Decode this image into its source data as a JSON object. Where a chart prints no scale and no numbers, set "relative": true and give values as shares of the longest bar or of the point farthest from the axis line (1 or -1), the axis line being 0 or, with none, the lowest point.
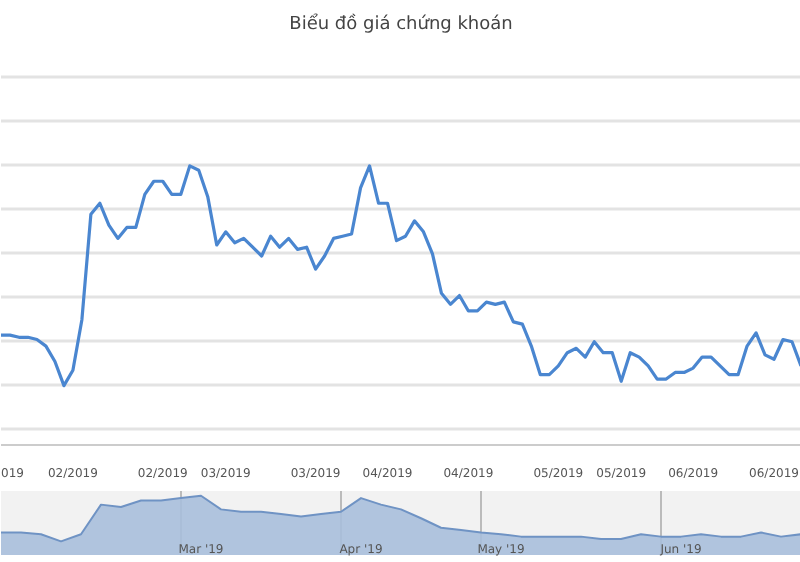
{
  "chart_data": [
    {
      "type": "line",
      "title": "Biểu đồ giá chứng khoán",
      "relative": true,
      "grid": "y",
      "marker": "none",
      "line_style": "solid",
      "categories": [
        null,
        "019",
        null,
        null,
        null,
        null,
        null,
        null,
        "02/2019",
        null,
        null,
        null,
        null,
        null,
        null,
        null,
        null,
        null,
        "02/2019",
        null,
        null,
        null,
        null,
        null,
        null,
        "03/2019",
        null,
        null,
        null,
        null,
        null,
        null,
        null,
        null,
        null,
        "03/2019",
        null,
        null,
        null,
        null,
        null,
        null,
        null,
        "04/2019",
        null,
        null,
        null,
        null,
        null,
        null,
        null,
        null,
        "04/2019",
        null,
        null,
        null,
        null,
        null,
        null,
        null,
        null,
        null,
        "05/2019",
        null,
        null,
        null,
        null,
        null,
        null,
        "05/2019",
        null,
        null,
        null,
        null,
        null,
        null,
        null,
        "06/2019",
        null,
        null,
        null,
        null,
        null,
        null,
        null,
        null,
        "06/2019",
        null,
        null,
        null
      ],
      "series": [
        {
          "color": "#4a86d0",
          "values": [
            0.23,
            0.23,
            0.22,
            0.22,
            0.21,
            0.18,
            0.11,
            0,
            0.07,
            0.3,
            0.78,
            0.83,
            0.73,
            0.67,
            0.72,
            0.72,
            0.87,
            0.93,
            0.93,
            0.87,
            0.87,
            1,
            0.98,
            0.86,
            0.64,
            0.7,
            0.65,
            0.67,
            0.63,
            0.59,
            0.68,
            0.63,
            0.67,
            0.62,
            0.63,
            0.53,
            0.59,
            0.67,
            0.68,
            0.69,
            0.9,
            1,
            0.83,
            0.83,
            0.66,
            0.68,
            0.75,
            0.7,
            0.6,
            0.42,
            0.37,
            0.41,
            0.34,
            0.34,
            0.38,
            0.37,
            0.38,
            0.29,
            0.28,
            0.18,
            0.05,
            0.05,
            0.09,
            0.15,
            0.17,
            0.13,
            0.2,
            0.15,
            0.15,
            0.02,
            0.15,
            0.13,
            0.09,
            0.03,
            0.03,
            0.06,
            0.06,
            0.08,
            0.13,
            0.13,
            0.09,
            0.05,
            0.05,
            0.18,
            0.24,
            0.14,
            0.12,
            0.21,
            0.2,
            0.09
          ]
        }
      ]
    },
    {
      "type": "area",
      "relative": true,
      "marker": "none",
      "grid": "x",
      "categories": [
        null,
        null,
        null,
        null,
        null,
        null,
        null,
        null,
        null,
        null,
        "Mar '19",
        null,
        null,
        null,
        null,
        null,
        null,
        null,
        "Apr '19",
        null,
        null,
        null,
        null,
        null,
        null,
        "May '19",
        null,
        null,
        null,
        null,
        null,
        null,
        null,
        null,
        "Jun '19",
        null,
        null,
        null,
        null,
        null,
        null
      ],
      "series": [
        {
          "color": "#a9bfdc",
          "values": [
            0.38,
            0.38,
            0.35,
            0.23,
            0.35,
            0.85,
            0.81,
            0.92,
            0.92,
            0.96,
            1,
            0.77,
            0.73,
            0.73,
            0.69,
            0.65,
            0.69,
            0.73,
            0.96,
            0.85,
            0.77,
            0.62,
            0.46,
            0.42,
            0.38,
            0.35,
            0.31,
            0.31,
            0.31,
            0.31,
            0.27,
            0.27,
            0.35,
            0.31,
            0.31,
            0.35,
            0.31,
            0.31,
            0.38,
            0.31,
            0.35
          ]
        }
      ]
    }
  ]
}
